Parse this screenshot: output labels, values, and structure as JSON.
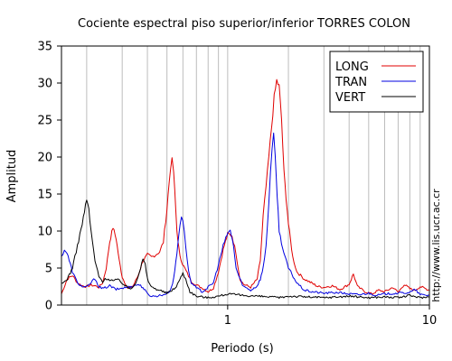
{
  "chart_data": {
    "type": "line",
    "title": "Cociente espectral piso superior/inferior  TORRES COLON",
    "xlabel": "Periodo (s)",
    "ylabel": "Amplitud",
    "side_text": "http://www.lis.ucr.ac.cr",
    "xscale": "log",
    "xlim": [
      0.15,
      10
    ],
    "ylim": [
      0,
      35
    ],
    "x_tick_labels": [
      {
        "value": 1,
        "label": "1"
      },
      {
        "value": 10,
        "label": "10"
      }
    ],
    "y_ticks": [
      0,
      5,
      10,
      15,
      20,
      25,
      30,
      35
    ],
    "grid": "vertical minor log grid",
    "legend_position": "top-right",
    "series": [
      {
        "name": "LONG",
        "color": "#e00000",
        "points": [
          [
            0.15,
            1.5
          ],
          [
            0.16,
            3.5
          ],
          [
            0.17,
            4.0
          ],
          [
            0.18,
            3.0
          ],
          [
            0.19,
            2.6
          ],
          [
            0.2,
            2.5
          ],
          [
            0.21,
            2.7
          ],
          [
            0.22,
            2.6
          ],
          [
            0.23,
            2.4
          ],
          [
            0.24,
            3.0
          ],
          [
            0.25,
            5.0
          ],
          [
            0.26,
            8.5
          ],
          [
            0.27,
            10.5
          ],
          [
            0.28,
            9.0
          ],
          [
            0.29,
            6.0
          ],
          [
            0.3,
            3.8
          ],
          [
            0.32,
            2.2
          ],
          [
            0.34,
            2.6
          ],
          [
            0.36,
            4.0
          ],
          [
            0.38,
            6.0
          ],
          [
            0.4,
            6.8
          ],
          [
            0.42,
            6.5
          ],
          [
            0.44,
            6.8
          ],
          [
            0.46,
            7.2
          ],
          [
            0.48,
            8.5
          ],
          [
            0.5,
            13.0
          ],
          [
            0.52,
            18.5
          ],
          [
            0.53,
            19.5
          ],
          [
            0.54,
            18.0
          ],
          [
            0.56,
            10.0
          ],
          [
            0.58,
            6.5
          ],
          [
            0.6,
            5.5
          ],
          [
            0.63,
            4.3
          ],
          [
            0.66,
            3.2
          ],
          [
            0.7,
            2.7
          ],
          [
            0.75,
            2.3
          ],
          [
            0.8,
            1.8
          ],
          [
            0.85,
            2.3
          ],
          [
            0.9,
            4.5
          ],
          [
            0.95,
            7.5
          ],
          [
            1.0,
            9.6
          ],
          [
            1.05,
            9.4
          ],
          [
            1.1,
            7.0
          ],
          [
            1.15,
            3.5
          ],
          [
            1.2,
            2.8
          ],
          [
            1.3,
            2.4
          ],
          [
            1.4,
            3.5
          ],
          [
            1.45,
            6.0
          ],
          [
            1.5,
            12.0
          ],
          [
            1.55,
            16.0
          ],
          [
            1.6,
            20.0
          ],
          [
            1.65,
            24.0
          ],
          [
            1.7,
            28.0
          ],
          [
            1.75,
            30.3
          ],
          [
            1.8,
            29.5
          ],
          [
            1.85,
            25.0
          ],
          [
            1.9,
            18.0
          ],
          [
            2.0,
            11.0
          ],
          [
            2.1,
            6.5
          ],
          [
            2.2,
            4.5
          ],
          [
            2.4,
            3.5
          ],
          [
            2.6,
            3.0
          ],
          [
            2.8,
            2.5
          ],
          [
            3.0,
            2.4
          ],
          [
            3.3,
            2.6
          ],
          [
            3.6,
            2.1
          ],
          [
            4.0,
            2.8
          ],
          [
            4.2,
            4.2
          ],
          [
            4.4,
            2.5
          ],
          [
            4.8,
            1.8
          ],
          [
            5.2,
            1.5
          ],
          [
            5.6,
            2.0
          ],
          [
            6.0,
            1.8
          ],
          [
            6.6,
            2.4
          ],
          [
            7.0,
            1.7
          ],
          [
            7.5,
            2.8
          ],
          [
            8.0,
            2.2
          ],
          [
            8.5,
            2.0
          ],
          [
            9.0,
            2.5
          ],
          [
            10.0,
            2.0
          ]
        ]
      },
      {
        "name": "TRAN",
        "color": "#0000e0",
        "points": [
          [
            0.15,
            6.5
          ],
          [
            0.155,
            7.5
          ],
          [
            0.16,
            7.0
          ],
          [
            0.17,
            4.5
          ],
          [
            0.18,
            3.0
          ],
          [
            0.19,
            2.5
          ],
          [
            0.2,
            2.4
          ],
          [
            0.21,
            3.0
          ],
          [
            0.22,
            3.6
          ],
          [
            0.23,
            2.5
          ],
          [
            0.24,
            2.2
          ],
          [
            0.26,
            2.6
          ],
          [
            0.28,
            2.1
          ],
          [
            0.3,
            2.3
          ],
          [
            0.32,
            2.4
          ],
          [
            0.34,
            2.6
          ],
          [
            0.36,
            2.8
          ],
          [
            0.38,
            2.4
          ],
          [
            0.4,
            1.5
          ],
          [
            0.42,
            1.2
          ],
          [
            0.44,
            1.2
          ],
          [
            0.46,
            1.3
          ],
          [
            0.48,
            1.4
          ],
          [
            0.5,
            1.6
          ],
          [
            0.52,
            2.0
          ],
          [
            0.54,
            3.5
          ],
          [
            0.56,
            7.0
          ],
          [
            0.58,
            11.0
          ],
          [
            0.59,
            12.0
          ],
          [
            0.6,
            11.5
          ],
          [
            0.62,
            8.0
          ],
          [
            0.64,
            4.5
          ],
          [
            0.66,
            3.0
          ],
          [
            0.7,
            2.3
          ],
          [
            0.75,
            1.8
          ],
          [
            0.8,
            2.4
          ],
          [
            0.85,
            3.0
          ],
          [
            0.9,
            5.5
          ],
          [
            0.95,
            8.0
          ],
          [
            0.98,
            9.0
          ],
          [
            1.0,
            9.8
          ],
          [
            1.03,
            10.0
          ],
          [
            1.07,
            8.0
          ],
          [
            1.1,
            5.0
          ],
          [
            1.15,
            3.5
          ],
          [
            1.2,
            2.5
          ],
          [
            1.3,
            2.0
          ],
          [
            1.4,
            2.6
          ],
          [
            1.45,
            3.5
          ],
          [
            1.5,
            5.0
          ],
          [
            1.55,
            8.0
          ],
          [
            1.6,
            14.0
          ],
          [
            1.63,
            18.0
          ],
          [
            1.66,
            21.0
          ],
          [
            1.69,
            22.8
          ],
          [
            1.72,
            20.0
          ],
          [
            1.76,
            15.0
          ],
          [
            1.8,
            10.0
          ],
          [
            1.9,
            7.0
          ],
          [
            2.0,
            5.0
          ],
          [
            2.2,
            3.0
          ],
          [
            2.4,
            2.0
          ],
          [
            2.6,
            1.8
          ],
          [
            3.0,
            1.6
          ],
          [
            3.5,
            1.7
          ],
          [
            4.0,
            1.5
          ],
          [
            4.5,
            1.4
          ],
          [
            5.0,
            1.6
          ],
          [
            5.5,
            1.3
          ],
          [
            6.0,
            1.5
          ],
          [
            7.0,
            1.6
          ],
          [
            8.0,
            1.7
          ],
          [
            8.5,
            2.1
          ],
          [
            9.0,
            1.4
          ],
          [
            10.0,
            1.3
          ]
        ]
      },
      {
        "name": "VERT",
        "color": "#000000",
        "points": [
          [
            0.15,
            2.8
          ],
          [
            0.16,
            3.5
          ],
          [
            0.17,
            5.0
          ],
          [
            0.18,
            8.0
          ],
          [
            0.19,
            11.0
          ],
          [
            0.2,
            14.2
          ],
          [
            0.205,
            13.0
          ],
          [
            0.21,
            10.0
          ],
          [
            0.22,
            6.0
          ],
          [
            0.23,
            3.8
          ],
          [
            0.24,
            3.2
          ],
          [
            0.25,
            3.6
          ],
          [
            0.27,
            3.3
          ],
          [
            0.29,
            3.4
          ],
          [
            0.31,
            2.6
          ],
          [
            0.33,
            2.2
          ],
          [
            0.35,
            3.0
          ],
          [
            0.37,
            5.0
          ],
          [
            0.38,
            6.2
          ],
          [
            0.39,
            5.5
          ],
          [
            0.4,
            3.5
          ],
          [
            0.42,
            2.4
          ],
          [
            0.45,
            2.1
          ],
          [
            0.5,
            1.6
          ],
          [
            0.55,
            2.3
          ],
          [
            0.58,
            3.5
          ],
          [
            0.6,
            4.3
          ],
          [
            0.62,
            3.5
          ],
          [
            0.65,
            1.8
          ],
          [
            0.7,
            1.2
          ],
          [
            0.8,
            1.0
          ],
          [
            0.9,
            1.2
          ],
          [
            1.0,
            1.5
          ],
          [
            1.2,
            1.3
          ],
          [
            1.4,
            1.2
          ],
          [
            1.6,
            1.1
          ],
          [
            1.8,
            1.0
          ],
          [
            2.0,
            1.2
          ],
          [
            2.5,
            1.1
          ],
          [
            3.0,
            1.0
          ],
          [
            4.0,
            1.2
          ],
          [
            5.0,
            1.0
          ],
          [
            6.0,
            1.1
          ],
          [
            7.0,
            1.0
          ],
          [
            8.0,
            1.3
          ],
          [
            9.0,
            1.0
          ],
          [
            10.0,
            1.1
          ]
        ]
      }
    ]
  }
}
